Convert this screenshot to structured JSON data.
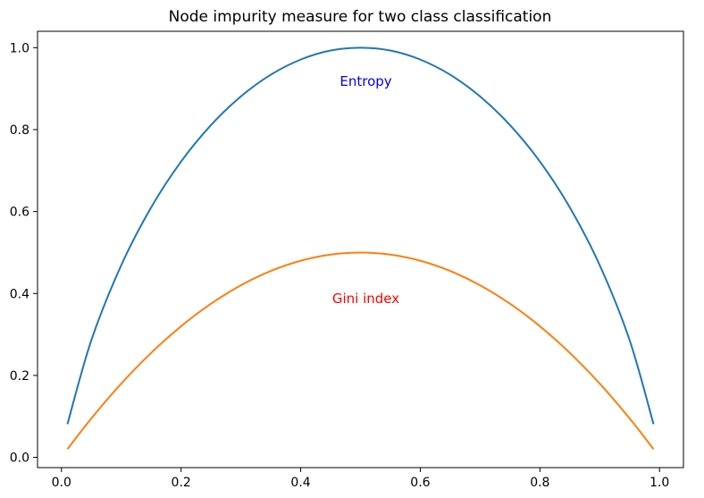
{
  "chart_data": {
    "type": "line",
    "title": "Node impurity measure for two class classification",
    "xlabel": "",
    "ylabel": "",
    "xlim": [
      -0.04,
      1.04
    ],
    "ylim": [
      -0.025,
      1.04
    ],
    "x_ticks": [
      0.0,
      0.2,
      0.4,
      0.6,
      0.8,
      1.0
    ],
    "x_tick_labels": [
      "0.0",
      "0.2",
      "0.4",
      "0.6",
      "0.8",
      "1.0"
    ],
    "y_ticks": [
      0.0,
      0.2,
      0.4,
      0.6,
      0.8,
      1.0
    ],
    "y_tick_labels": [
      "0.0",
      "0.2",
      "0.4",
      "0.6",
      "0.8",
      "1.0"
    ],
    "grid": false,
    "legend": "none",
    "series": [
      {
        "color": "#1f77b4",
        "x": [
          0.01,
          0.05,
          0.1,
          0.15,
          0.2,
          0.25,
          0.3,
          0.35,
          0.4,
          0.45,
          0.5,
          0.55,
          0.6,
          0.65,
          0.7,
          0.75,
          0.8,
          0.85,
          0.9,
          0.95,
          0.99
        ],
        "values": [
          0.081,
          0.286,
          0.469,
          0.61,
          0.722,
          0.811,
          0.881,
          0.934,
          0.971,
          0.993,
          1.0,
          0.993,
          0.971,
          0.934,
          0.881,
          0.811,
          0.722,
          0.61,
          0.469,
          0.286,
          0.081
        ]
      },
      {
        "color": "#ff7f0e",
        "x": [
          0.01,
          0.05,
          0.1,
          0.15,
          0.2,
          0.25,
          0.3,
          0.35,
          0.4,
          0.45,
          0.5,
          0.55,
          0.6,
          0.65,
          0.7,
          0.75,
          0.8,
          0.85,
          0.9,
          0.95,
          0.99
        ],
        "values": [
          0.02,
          0.095,
          0.18,
          0.255,
          0.32,
          0.375,
          0.42,
          0.455,
          0.48,
          0.495,
          0.5,
          0.495,
          0.48,
          0.455,
          0.42,
          0.375,
          0.32,
          0.255,
          0.18,
          0.095,
          0.02
        ]
      }
    ],
    "annotations": [
      {
        "text": "Entropy",
        "x": 0.5,
        "y": 0.92,
        "color": "#0000ff"
      },
      {
        "text": "Gini index",
        "x": 0.5,
        "y": 0.39,
        "color": "#ff0000"
      }
    ]
  }
}
